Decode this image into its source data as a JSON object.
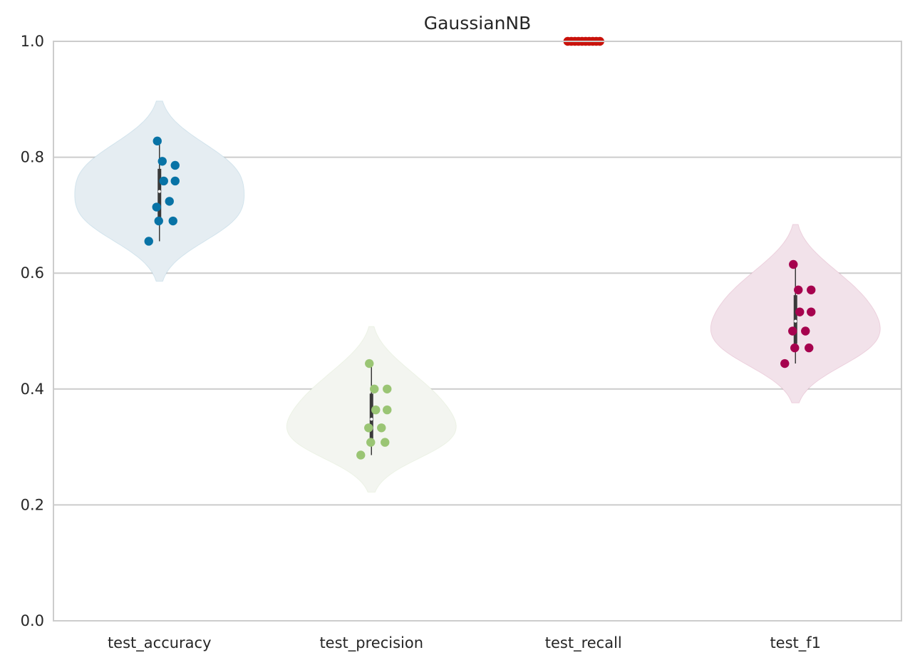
{
  "chart_data": {
    "type": "violin",
    "title": "GaussianNB",
    "xlabel": "",
    "ylabel": "",
    "ylim": [
      0.0,
      1.0
    ],
    "yticks": [
      "0.0",
      "0.2",
      "0.4",
      "0.6",
      "0.8",
      "1.0"
    ],
    "grid": "horizontal",
    "categories": [
      "test_accuracy",
      "test_precision",
      "test_recall",
      "test_f1"
    ],
    "colors": {
      "test_accuracy": "#0873a6",
      "test_precision": "#9ac574",
      "test_recall": "#c9130c",
      "test_f1": "#a6024e"
    },
    "violin_fill": {
      "test_accuracy": "#e5edf2",
      "test_precision": "#f3f5f0",
      "test_recall": "#f6e2e2",
      "test_f1": "#f2e2ea"
    },
    "series": [
      {
        "category": "test_accuracy",
        "values": [
          0.828,
          0.793,
          0.786,
          0.759,
          0.759,
          0.724,
          0.714,
          0.69,
          0.69,
          0.655
        ],
        "kde_range": [
          0.586,
          0.897
        ],
        "median": 0.741,
        "q1": 0.69,
        "q3": 0.78,
        "min": 0.655,
        "max": 0.828
      },
      {
        "category": "test_precision",
        "values": [
          0.444,
          0.4,
          0.4,
          0.364,
          0.364,
          0.333,
          0.333,
          0.308,
          0.308,
          0.286
        ],
        "kde_range": [
          0.222,
          0.508
        ],
        "median": 0.348,
        "q1": 0.314,
        "q3": 0.392,
        "min": 0.286,
        "max": 0.444
      },
      {
        "category": "test_recall",
        "values": [
          1.0,
          1.0,
          1.0,
          1.0,
          1.0,
          1.0,
          1.0,
          1.0,
          1.0,
          1.0
        ],
        "kde_range": [
          1.0,
          1.0
        ],
        "median": 1.0,
        "q1": 1.0,
        "q3": 1.0,
        "min": 1.0,
        "max": 1.0
      },
      {
        "category": "test_f1",
        "values": [
          0.615,
          0.571,
          0.571,
          0.533,
          0.533,
          0.5,
          0.5,
          0.471,
          0.471,
          0.444
        ],
        "kde_range": [
          0.376,
          0.684
        ],
        "median": 0.517,
        "q1": 0.478,
        "q3": 0.562,
        "min": 0.444,
        "max": 0.615
      }
    ]
  }
}
